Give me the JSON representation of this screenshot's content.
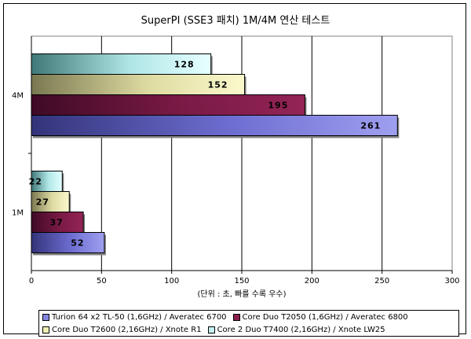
{
  "chart_data": {
    "type": "bar",
    "orientation": "horizontal",
    "title": "SuperPI (SSE3 패치) 1M/4M 연산 테스트",
    "xlabel": "(단위 : 초, 빠를 수록 우수)",
    "xlim": [
      0,
      300
    ],
    "xticks": [
      0,
      50,
      100,
      150,
      200,
      250,
      300
    ],
    "grid": "vertical",
    "legend_position": "bottom",
    "categories": [
      "4M",
      "1M"
    ],
    "series": [
      {
        "name": "Turion 64 x2 TL-50 (1,6GHz) / Averatec 6700",
        "color": "#8585e0",
        "values": [
          261,
          52
        ]
      },
      {
        "name": "Core Duo T2050 (1,6GHz) / Averatec 6800",
        "color": "#8a1f4f",
        "values": [
          195,
          37
        ]
      },
      {
        "name": "Core Duo T2600 (2,16GHz) / Xnote R1",
        "color": "#f2efb4",
        "values": [
          152,
          27
        ]
      },
      {
        "name": "Core 2 Duo T7400 (2,16GHz) / Xnote LW25",
        "color": "#c6f1f1",
        "values": [
          128,
          22
        ]
      }
    ]
  }
}
